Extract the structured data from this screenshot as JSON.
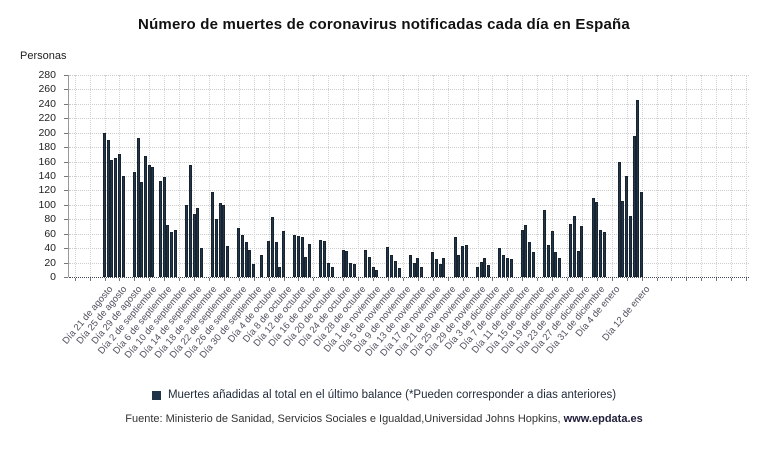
{
  "chart_data": {
    "type": "bar",
    "title": "Número de muertes de coronavirus notificadas cada día en España",
    "ylabel": "Personas",
    "ylim": [
      0,
      280
    ],
    "y_ticks": [
      0,
      20,
      40,
      60,
      80,
      100,
      120,
      140,
      160,
      180,
      200,
      220,
      240,
      260,
      280
    ],
    "grid": "dotted",
    "bar_color": "#223649",
    "legend_position": "bottom-center",
    "legend": "Muertes añadidas al total en el último balance (*Pueden corresponder a dias anteriores)",
    "source_prefix": "Fuente: Ministerio de Sanidad, Servicios Sociales e Igualdad,Universidad Johns Hopkins, ",
    "source_site": "www.epdata.es",
    "n_slots": 145,
    "values": [
      200,
      190,
      162,
      165,
      170,
      140,
      0,
      0,
      146,
      193,
      132,
      168,
      155,
      152,
      0,
      133,
      138,
      72,
      62,
      65,
      0,
      0,
      100,
      155,
      88,
      95,
      40,
      0,
      0,
      118,
      80,
      102,
      100,
      43,
      0,
      0,
      68,
      58,
      48,
      38,
      18,
      0,
      30,
      0,
      50,
      83,
      48,
      14,
      64,
      0,
      0,
      58,
      57,
      55,
      28,
      46,
      0,
      0,
      52,
      50,
      20,
      14,
      0,
      0,
      38,
      36,
      20,
      18,
      0,
      0,
      37,
      28,
      14,
      10,
      0,
      0,
      42,
      30,
      22,
      12,
      0,
      0,
      31,
      20,
      27,
      14,
      0,
      0,
      35,
      25,
      18,
      26,
      0,
      0,
      55,
      30,
      43,
      45,
      0,
      0,
      14,
      21,
      26,
      17,
      0,
      0,
      40,
      30,
      26,
      25,
      0,
      0,
      65,
      72,
      48,
      35,
      0,
      0,
      93,
      45,
      64,
      34,
      27,
      0,
      0,
      73,
      84,
      36,
      71,
      0,
      0,
      110,
      104,
      65,
      62,
      0,
      0,
      0,
      160,
      105,
      140,
      85,
      195,
      245,
      118
    ],
    "x_tick_labels": [
      {
        "slot": 0,
        "label": "Día 21 de agosto"
      },
      {
        "slot": 4,
        "label": "Día 25 de agosto"
      },
      {
        "slot": 8,
        "label": "Día 29 de agosto"
      },
      {
        "slot": 12,
        "label": "Día 2 de septiembre"
      },
      {
        "slot": 16,
        "label": "Día 6 de septiembre"
      },
      {
        "slot": 20,
        "label": "Día 10 de septiembre"
      },
      {
        "slot": 24,
        "label": "Día 14 de septiembre"
      },
      {
        "slot": 28,
        "label": "Día 18 de septiembre"
      },
      {
        "slot": 32,
        "label": "Día 22 de septiembre"
      },
      {
        "slot": 36,
        "label": "Día 26 de septiembre"
      },
      {
        "slot": 40,
        "label": "Día 30 de septiembre"
      },
      {
        "slot": 44,
        "label": "Día 4 de octubre"
      },
      {
        "slot": 48,
        "label": "Día 8 de octubre"
      },
      {
        "slot": 52,
        "label": "Día 12 de octubre"
      },
      {
        "slot": 56,
        "label": "Día 16 de octubre"
      },
      {
        "slot": 60,
        "label": "Día 20 de octubre"
      },
      {
        "slot": 64,
        "label": "Día 24 de octubre"
      },
      {
        "slot": 68,
        "label": "Día 28 de octubre"
      },
      {
        "slot": 72,
        "label": "Día 1 de noviembre"
      },
      {
        "slot": 76,
        "label": "Día 5 de noviembre"
      },
      {
        "slot": 80,
        "label": "Día 9 de noviembre"
      },
      {
        "slot": 84,
        "label": "Día 13 de noviembre"
      },
      {
        "slot": 88,
        "label": "Día 17 de noviembre"
      },
      {
        "slot": 92,
        "label": "Día 21 de noviembre"
      },
      {
        "slot": 96,
        "label": "Día 25 de noviembre"
      },
      {
        "slot": 100,
        "label": "Día 29 de noviembre"
      },
      {
        "slot": 104,
        "label": "Día 3 de diciembre"
      },
      {
        "slot": 108,
        "label": "Día 7 de diciembre"
      },
      {
        "slot": 112,
        "label": "Día 11 de diciembre"
      },
      {
        "slot": 116,
        "label": "Día 15 de diciembre"
      },
      {
        "slot": 120,
        "label": "Día 19 de diciembre"
      },
      {
        "slot": 124,
        "label": "Día 23 de diciembre"
      },
      {
        "slot": 128,
        "label": "Día 27 de diciembre"
      },
      {
        "slot": 132,
        "label": "Día 31 de diciembre"
      },
      {
        "slot": 136,
        "label": "Día 4 de enero"
      },
      {
        "slot": 144,
        "label": "Día 12 de enero"
      }
    ]
  }
}
